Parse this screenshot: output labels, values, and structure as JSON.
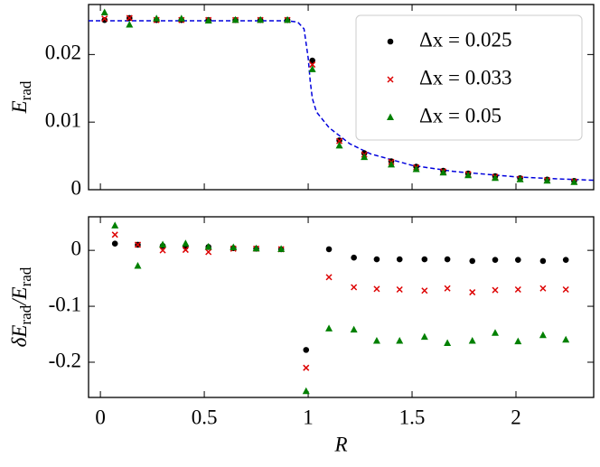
{
  "chart_data": [
    {
      "type": "scatter",
      "ylabel": [
        {
          "text": "E"
        },
        {
          "text": "rad",
          "sub": true
        }
      ],
      "x": [
        0.02,
        0.14,
        0.27,
        0.39,
        0.52,
        0.65,
        0.77,
        0.9,
        1.02,
        1.15,
        1.27,
        1.4,
        1.52,
        1.65,
        1.77,
        1.9,
        2.02,
        2.15,
        2.28
      ],
      "series": [
        {
          "name": "Δx = 0.025",
          "color": "#000000",
          "marker": "o",
          "values": [
            0.0251,
            0.0254,
            0.0251,
            0.0251,
            0.0251,
            0.0251,
            0.0251,
            0.0251,
            0.0191,
            0.0073,
            0.0054,
            0.0042,
            0.0034,
            0.0028,
            0.0024,
            0.002,
            0.0017,
            0.0015,
            0.0013
          ]
        },
        {
          "name": "Δx = 0.033",
          "color": "#dd0000",
          "marker": "x",
          "values": [
            0.0253,
            0.0254,
            0.0251,
            0.0251,
            0.0251,
            0.0251,
            0.0251,
            0.0251,
            0.0185,
            0.0072,
            0.0052,
            0.0041,
            0.0033,
            0.0027,
            0.0023,
            0.0019,
            0.0016,
            0.0014,
            0.0012
          ]
        },
        {
          "name": "Δx = 0.05",
          "color": "#008000",
          "marker": "^",
          "values": [
            0.0262,
            0.0244,
            0.0253,
            0.0253,
            0.025,
            0.0251,
            0.0251,
            0.0251,
            0.0178,
            0.0065,
            0.0048,
            0.0037,
            0.003,
            0.0025,
            0.0021,
            0.0017,
            0.0015,
            0.0013,
            0.0011
          ]
        }
      ],
      "line": {
        "color": "#0000dd",
        "dashed": true,
        "x": [
          -0.057,
          0.5,
          0.9,
          0.95,
          0.98,
          1.0,
          1.01,
          1.02,
          1.04,
          1.1,
          1.2,
          1.3,
          1.5,
          1.7,
          2.0,
          2.2,
          2.374
        ],
        "values": [
          0.025,
          0.025,
          0.025,
          0.0248,
          0.0238,
          0.0195,
          0.016,
          0.0135,
          0.0115,
          0.0092,
          0.0068,
          0.0053,
          0.0036,
          0.0027,
          0.0019,
          0.0016,
          0.0014
        ]
      },
      "xlim": [
        -0.057,
        2.374
      ],
      "xticks": [
        0,
        0.5,
        1,
        1.5,
        2
      ],
      "ylim": [
        0,
        0.0274
      ],
      "yticks": [
        0,
        0.01,
        0.02
      ],
      "legend": "upper right"
    },
    {
      "type": "scatter",
      "xlabel": "R",
      "ylabel": [
        {
          "text": "δE"
        },
        {
          "text": "rad",
          "sub": true
        },
        {
          "text": "/E"
        },
        {
          "text": "rad",
          "sub": true
        }
      ],
      "x": [
        0.07,
        0.18,
        0.3,
        0.41,
        0.52,
        0.64,
        0.75,
        0.87,
        0.99,
        1.1,
        1.22,
        1.33,
        1.44,
        1.56,
        1.67,
        1.79,
        1.9,
        2.01,
        2.13,
        2.24
      ],
      "series": [
        {
          "color": "#000000",
          "marker": "o",
          "values": [
            0.012,
            0.01,
            0.008,
            0.006,
            0.006,
            0.004,
            0.003,
            0.002,
            -0.178,
            0.002,
            -0.013,
            -0.016,
            -0.016,
            -0.016,
            -0.016,
            -0.019,
            -0.017,
            -0.017,
            -0.019,
            -0.017
          ]
        },
        {
          "color": "#dd0000",
          "marker": "x",
          "values": [
            0.028,
            0.01,
            0.0,
            0.001,
            -0.003,
            0.003,
            0.003,
            0.002,
            -0.21,
            -0.048,
            -0.066,
            -0.069,
            -0.07,
            -0.072,
            -0.068,
            -0.075,
            -0.071,
            -0.07,
            -0.068,
            -0.07
          ]
        },
        {
          "color": "#008000",
          "marker": "^",
          "values": [
            0.044,
            -0.028,
            0.01,
            0.012,
            0.006,
            0.005,
            0.003,
            0.002,
            -0.252,
            -0.14,
            -0.142,
            -0.162,
            -0.162,
            -0.155,
            -0.166,
            -0.162,
            -0.148,
            -0.163,
            -0.152,
            -0.16
          ]
        }
      ],
      "xlim": [
        -0.057,
        2.374
      ],
      "xticks": [
        0,
        0.5,
        1,
        1.5,
        2
      ],
      "ylim": [
        -0.263,
        0.06
      ],
      "yticks": [
        0,
        -0.1,
        -0.2
      ]
    }
  ]
}
